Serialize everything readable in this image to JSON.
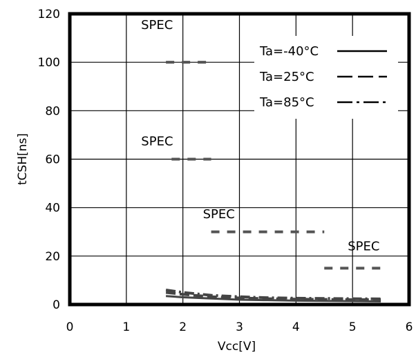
{
  "chart_data": {
    "type": "line",
    "xlabel": "Vcc[V]",
    "ylabel": "tCSH[ns]",
    "xlim": [
      0,
      6
    ],
    "ylim": [
      0,
      120
    ],
    "xticks": [
      0,
      1,
      2,
      3,
      4,
      5,
      6
    ],
    "yticks": [
      0,
      20,
      40,
      60,
      80,
      100,
      120
    ],
    "grid": true,
    "legend_position": "top-right",
    "colors": {
      "frame": "#000000",
      "grid": "#000000",
      "spec": "#555555",
      "series": "#444444"
    },
    "series": [
      {
        "name": "Ta=-40°C",
        "style": "solid",
        "x": [
          1.7,
          2.0,
          2.5,
          3.0,
          3.5,
          4.0,
          4.5,
          5.0,
          5.5
        ],
        "y": [
          3.5,
          3.0,
          2.5,
          2.0,
          1.8,
          1.6,
          1.5,
          1.4,
          1.3
        ]
      },
      {
        "name": "Ta=25°C",
        "style": "dashed",
        "x": [
          1.7,
          2.0,
          2.5,
          3.0,
          3.5,
          4.0,
          4.5,
          5.0,
          5.5
        ],
        "y": [
          5.0,
          4.2,
          3.2,
          2.7,
          2.4,
          2.2,
          2.1,
          2.0,
          2.0
        ]
      },
      {
        "name": "Ta=85°C",
        "style": "dashdot",
        "x": [
          1.7,
          2.0,
          2.5,
          3.0,
          3.5,
          4.0,
          4.5,
          5.0,
          5.5
        ],
        "y": [
          6.0,
          5.0,
          3.8,
          3.2,
          2.8,
          2.6,
          2.5,
          2.4,
          2.3
        ]
      }
    ],
    "spec_lines": [
      {
        "label": "SPEC",
        "x": [
          1.7,
          2.5
        ],
        "y": 100
      },
      {
        "label": "SPEC",
        "x": [
          1.8,
          2.5
        ],
        "y": 60
      },
      {
        "label": "SPEC",
        "x": [
          2.5,
          4.5
        ],
        "y": 30
      },
      {
        "label": "SPEC",
        "x": [
          4.5,
          5.5
        ],
        "y": 15
      }
    ]
  }
}
